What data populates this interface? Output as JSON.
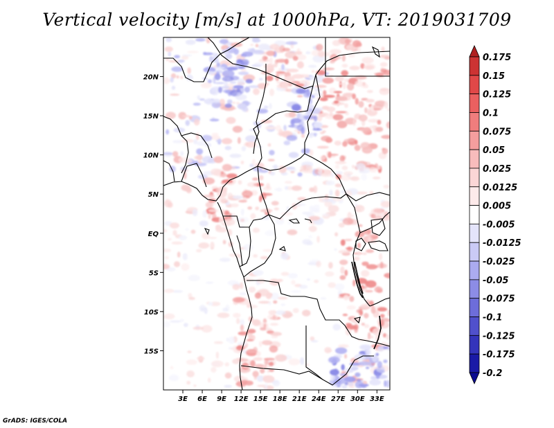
{
  "title": "Vertical velocity [m/s] at 1000hPa, VT: 2019031709",
  "credit": "GrADS: IGES/COLA",
  "map": {
    "lon_range": [
      0,
      35
    ],
    "lat_range": [
      -20,
      25
    ],
    "lat_ticks": [
      {
        "value": 20,
        "label": "20N"
      },
      {
        "value": 15,
        "label": "15N"
      },
      {
        "value": 10,
        "label": "10N"
      },
      {
        "value": 5,
        "label": "5N"
      },
      {
        "value": 0,
        "label": "EQ"
      },
      {
        "value": -5,
        "label": "5S"
      },
      {
        "value": -10,
        "label": "10S"
      },
      {
        "value": -15,
        "label": "15S"
      }
    ],
    "lon_ticks": [
      {
        "value": 3,
        "label": "3E"
      },
      {
        "value": 6,
        "label": "6E"
      },
      {
        "value": 9,
        "label": "9E"
      },
      {
        "value": 12,
        "label": "12E"
      },
      {
        "value": 15,
        "label": "15E"
      },
      {
        "value": 18,
        "label": "18E"
      },
      {
        "value": 21,
        "label": "21E"
      },
      {
        "value": 24,
        "label": "24E"
      },
      {
        "value": 27,
        "label": "27E"
      },
      {
        "value": 30,
        "label": "30E"
      },
      {
        "value": 33,
        "label": "33E"
      }
    ]
  },
  "colorbar": {
    "labels": [
      "0.175",
      "0.15",
      "0.125",
      "0.1",
      "0.075",
      "0.05",
      "0.025",
      "0.0125",
      "0.005",
      "-0.005",
      "-0.0125",
      "-0.025",
      "-0.05",
      "-0.075",
      "-0.1",
      "-0.125",
      "-0.175",
      "-0.2"
    ],
    "colors": [
      "#b02020",
      "#cc3333",
      "#e04848",
      "#ea6060",
      "#f07d7d",
      "#f49e9e",
      "#f8bcbc",
      "#fbd6d6",
      "#fdeaea",
      "#ffffff",
      "#e4e4fb",
      "#cacaf6",
      "#ababf0",
      "#8c8ce6",
      "#6d6dda",
      "#5050cc",
      "#3434bb",
      "#1a1aa6",
      "#0c0c90"
    ]
  }
}
